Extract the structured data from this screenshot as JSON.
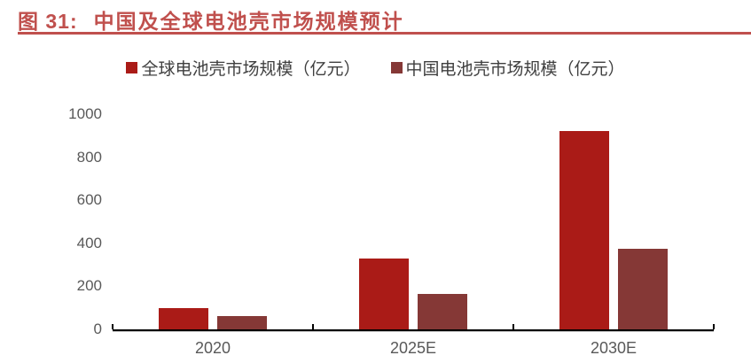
{
  "figure": {
    "label": "图 31:",
    "title": "中国及全球电池壳市场规模预计"
  },
  "colors": {
    "title": "#C0504D",
    "rule": "#C0504D",
    "axis_line": "#000000",
    "axis_label": "#595959",
    "legend_text": "#3F3F3F",
    "background": "#FFFFFF"
  },
  "chart_data": {
    "type": "bar",
    "title": "中国及全球电池壳市场规模预计",
    "categories": [
      "2020",
      "2025E",
      "2030E"
    ],
    "series": [
      {
        "name": "全球电池壳市场规模（亿元）",
        "key": "global",
        "color": "#AA1B17",
        "values": [
          100,
          330,
          920
        ]
      },
      {
        "name": "中国电池壳市场规模（亿元）",
        "key": "china",
        "color": "#853836",
        "values": [
          60,
          165,
          375
        ]
      }
    ],
    "xlabel": "",
    "ylabel": "",
    "ylim": [
      0,
      1000
    ],
    "yticks": [
      0,
      200,
      400,
      600,
      800,
      1000
    ],
    "grid": false,
    "legend_position": "top"
  }
}
